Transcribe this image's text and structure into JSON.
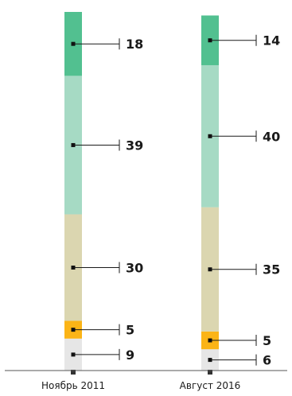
{
  "chart_data": {
    "type": "bar",
    "stacked": true,
    "orientation": "vertical",
    "categories": [
      "Ноябрь 2011",
      "Август 2016"
    ],
    "series": [
      {
        "values": [
          9,
          6
        ],
        "color": "#e6e6e6"
      },
      {
        "values": [
          5,
          5
        ],
        "color": "#fbb417"
      },
      {
        "values": [
          30,
          35
        ],
        "color": "#dbd6b0"
      },
      {
        "values": [
          39,
          40
        ],
        "color": "#a6dac4"
      },
      {
        "values": [
          18,
          14
        ],
        "color": "#52c090"
      }
    ],
    "value_labels": [
      [
        "9",
        "5",
        "30",
        "39",
        "18"
      ],
      [
        "6",
        "5",
        "35",
        "40",
        "14"
      ]
    ],
    "ylim": [
      0,
      101
    ],
    "grid": false,
    "legend": "none"
  }
}
